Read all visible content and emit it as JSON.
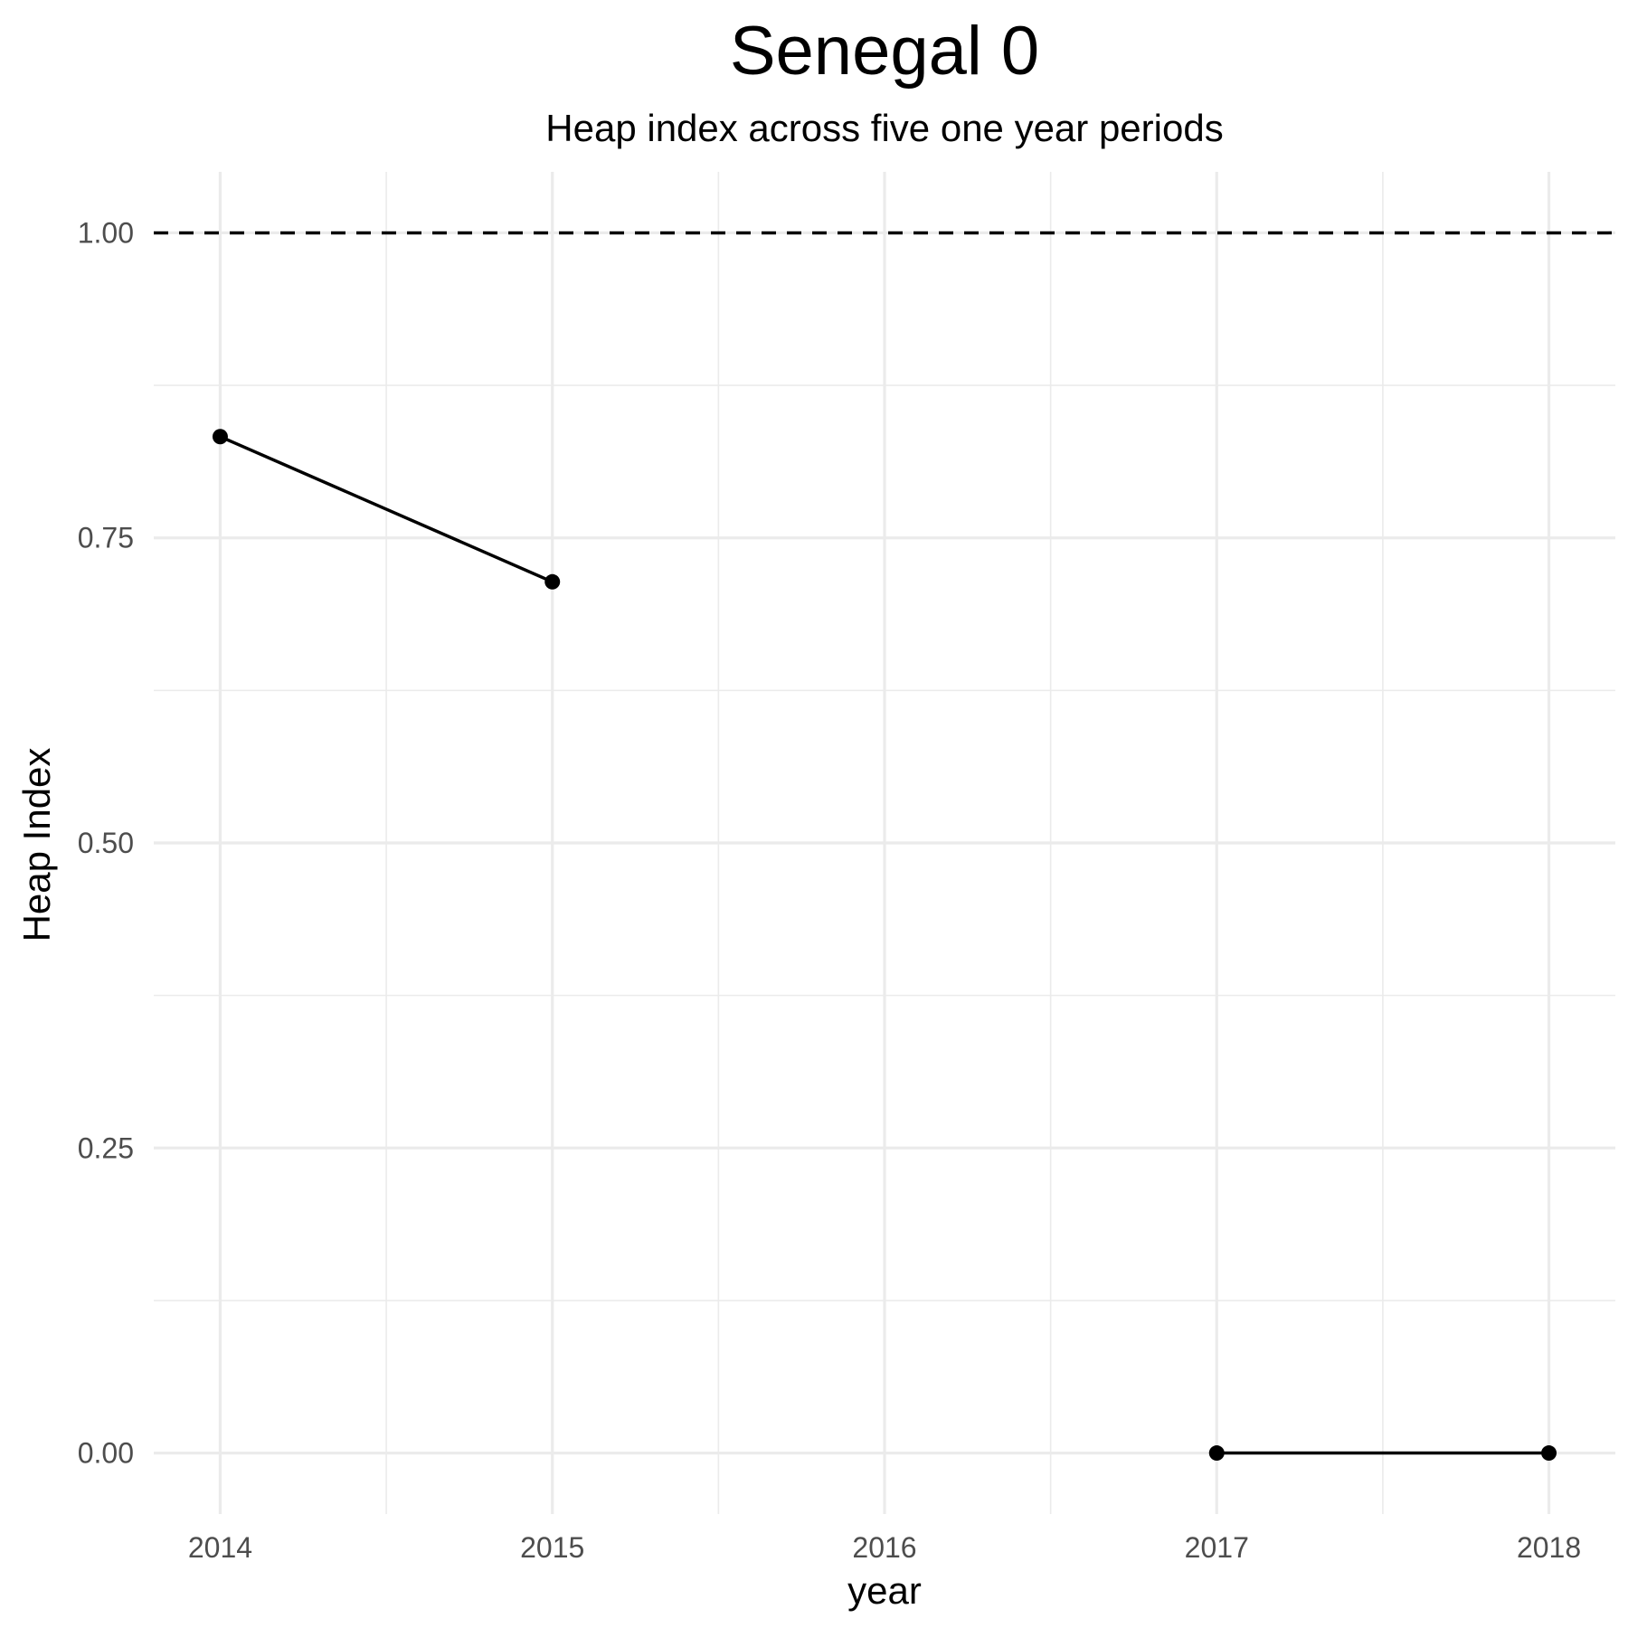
{
  "chart_data": {
    "type": "line",
    "title": "Senegal 0",
    "subtitle": "Heap index across five one year periods",
    "xlabel": "year",
    "ylabel": "Heap Index",
    "x_ticks": [
      "2014",
      "2015",
      "2016",
      "2017",
      "2018"
    ],
    "y_ticks": [
      "0.00",
      "0.25",
      "0.50",
      "0.75",
      "1.00"
    ],
    "xlim": [
      2013.8,
      2018.2
    ],
    "ylim": [
      -0.05,
      1.05
    ],
    "grid": true,
    "reference_line": {
      "y": 1.0,
      "style": "dashed"
    },
    "series": [
      {
        "segments": [
          [
            {
              "x": 2014,
              "y": 0.833
            },
            {
              "x": 2015,
              "y": 0.714
            }
          ],
          [
            {
              "x": 2017,
              "y": 0.0
            },
            {
              "x": 2018,
              "y": 0.0
            }
          ]
        ]
      }
    ],
    "colors": {
      "series": "#000000",
      "grid": "#ebebeb",
      "tick_text": "#4d4d4d"
    }
  }
}
